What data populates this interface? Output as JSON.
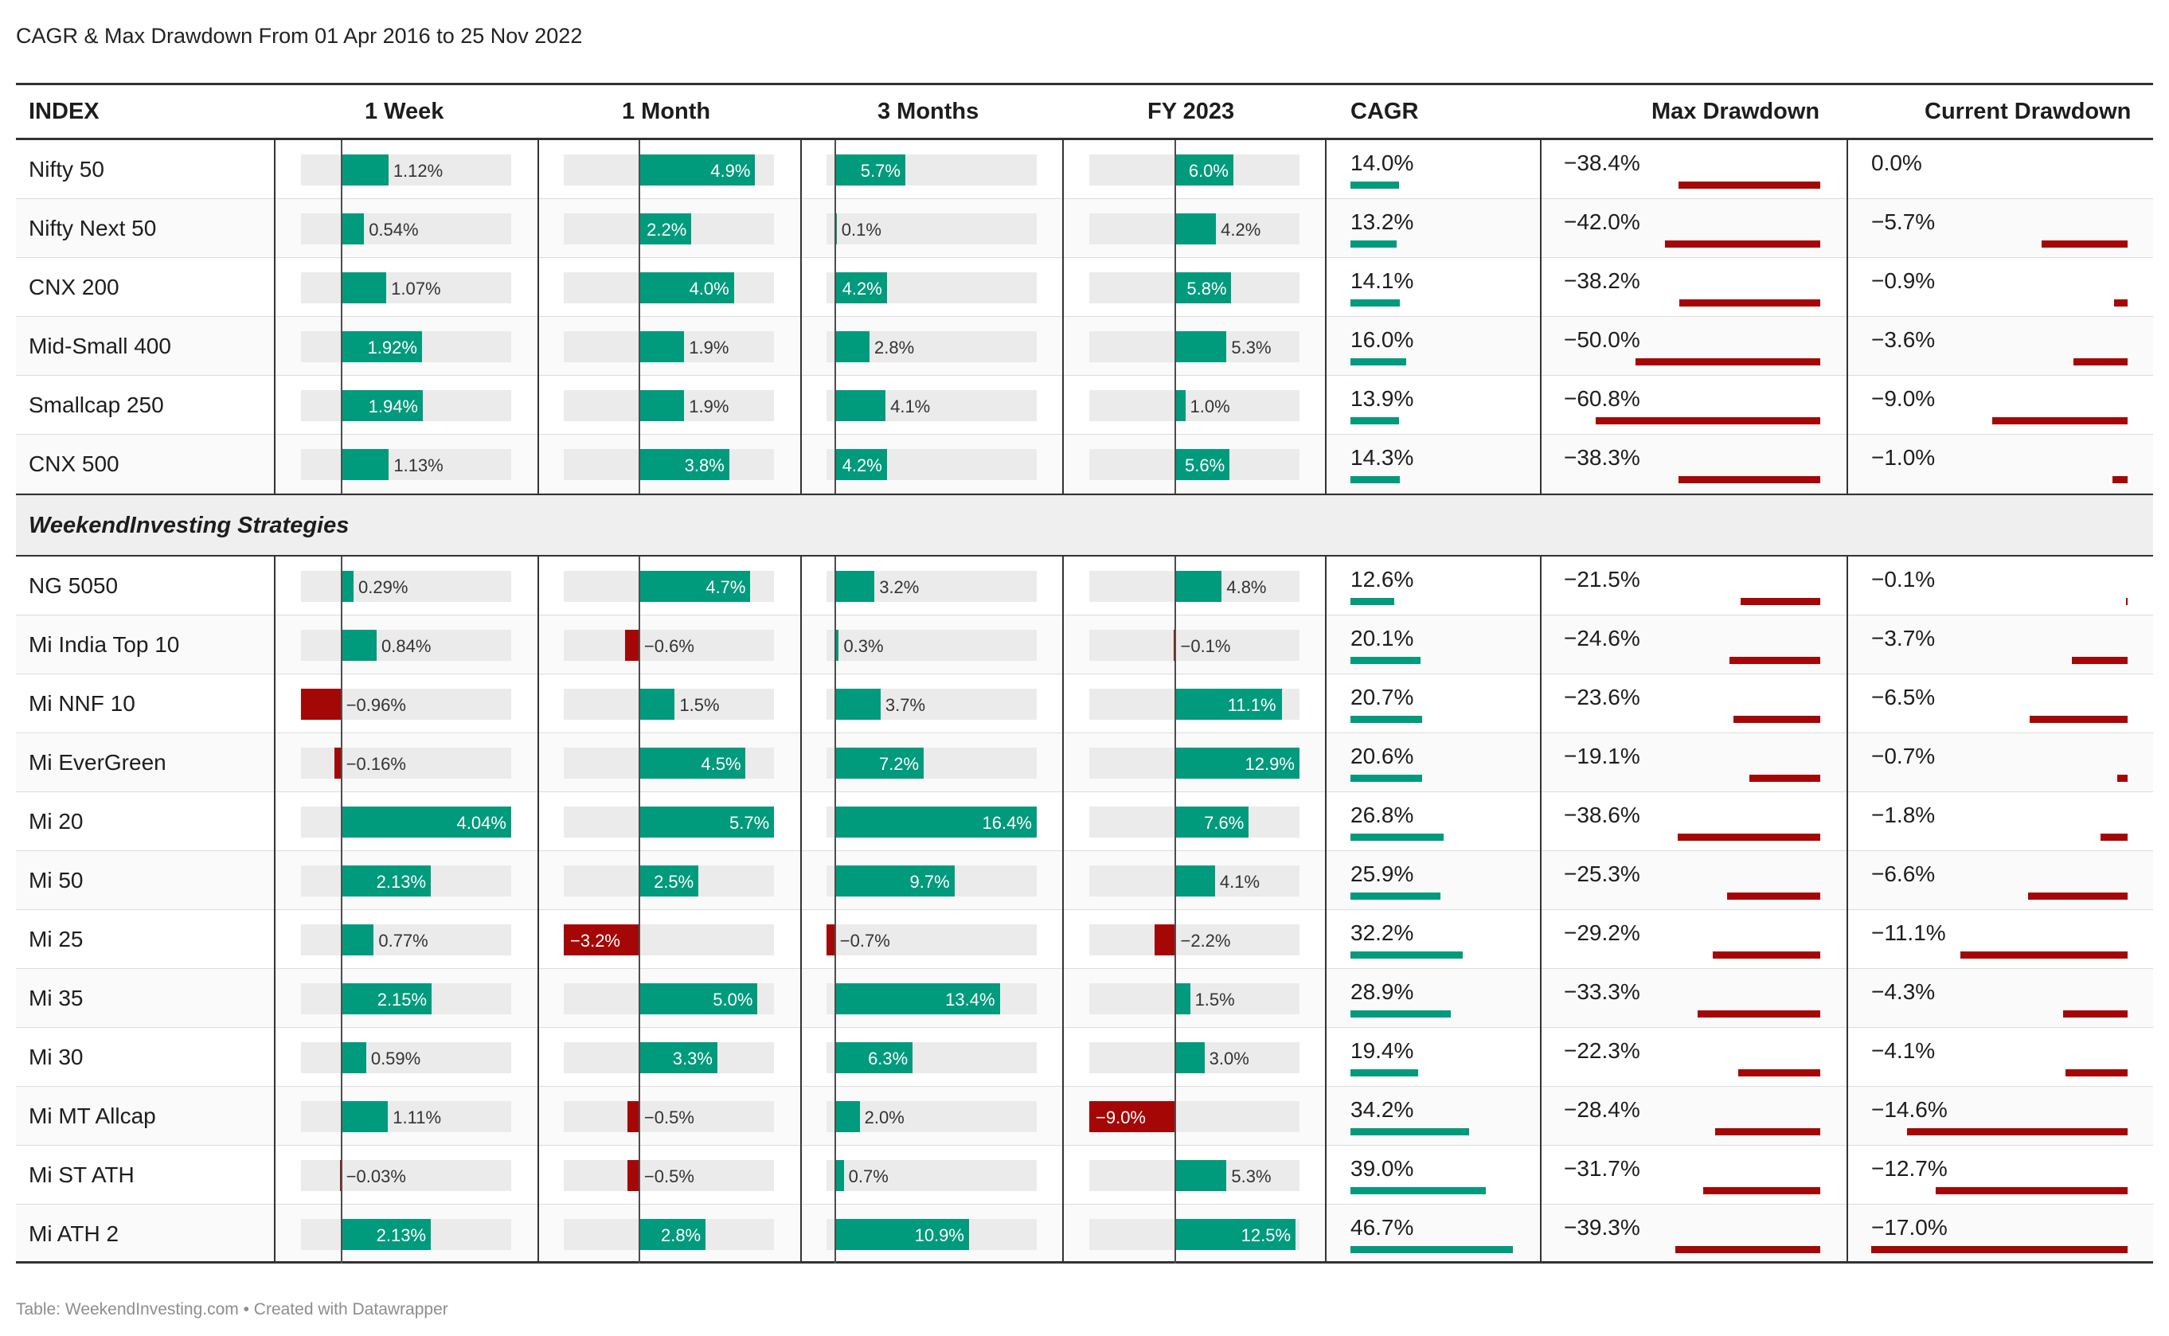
{
  "title": "CAGR & Max Drawdown From 01 Apr 2016 to 25 Nov 2022",
  "footer": "Table: WeekendInvesting.com • Created with Datawrapper",
  "colors": {
    "positive": "#009a7c",
    "negative": "#a50707",
    "track": "#ebebeb",
    "text": "#1d1d1d"
  },
  "chart_data": {
    "type": "table",
    "columns": [
      "INDEX",
      "1 Week",
      "1 Month",
      "3 Months",
      "FY 2023",
      "CAGR",
      "Max Drawdown",
      "Current Drawdown"
    ],
    "units": {
      "1 Week": "%",
      "1 Month": "%",
      "3 Months": "%",
      "FY 2023": "%",
      "CAGR": "%",
      "Max Drawdown": "%",
      "Current Drawdown": "%"
    },
    "groups": [
      {
        "label": "",
        "rows": [
          {
            "name": "Nifty 50",
            "w1": 1.12,
            "m1": 4.9,
            "m3": 5.7,
            "fy": 6.0,
            "cagr": 14.0,
            "maxdd": -38.4,
            "curdd": 0.0
          },
          {
            "name": "Nifty Next 50",
            "w1": 0.54,
            "m1": 2.2,
            "m3": 0.1,
            "fy": 4.2,
            "cagr": 13.2,
            "maxdd": -42.0,
            "curdd": -5.7
          },
          {
            "name": "CNX 200",
            "w1": 1.07,
            "m1": 4.0,
            "m3": 4.2,
            "fy": 5.8,
            "cagr": 14.1,
            "maxdd": -38.2,
            "curdd": -0.9
          },
          {
            "name": "Mid-Small 400",
            "w1": 1.92,
            "m1": 1.9,
            "m3": 2.8,
            "fy": 5.3,
            "cagr": 16.0,
            "maxdd": -50.0,
            "curdd": -3.6
          },
          {
            "name": "Smallcap 250",
            "w1": 1.94,
            "m1": 1.9,
            "m3": 4.1,
            "fy": 1.0,
            "cagr": 13.9,
            "maxdd": -60.8,
            "curdd": -9.0
          },
          {
            "name": "CNX 500",
            "w1": 1.13,
            "m1": 3.8,
            "m3": 4.2,
            "fy": 5.6,
            "cagr": 14.3,
            "maxdd": -38.3,
            "curdd": -1.0
          }
        ]
      },
      {
        "label": "WeekendInvesting Strategies",
        "rows": [
          {
            "name": "NG 5050",
            "w1": 0.29,
            "m1": 4.7,
            "m3": 3.2,
            "fy": 4.8,
            "cagr": 12.6,
            "maxdd": -21.5,
            "curdd": -0.1
          },
          {
            "name": "Mi India Top 10",
            "w1": 0.84,
            "m1": -0.6,
            "m3": 0.3,
            "fy": -0.1,
            "cagr": 20.1,
            "maxdd": -24.6,
            "curdd": -3.7
          },
          {
            "name": "Mi NNF 10",
            "w1": -0.96,
            "m1": 1.5,
            "m3": 3.7,
            "fy": 11.1,
            "cagr": 20.7,
            "maxdd": -23.6,
            "curdd": -6.5
          },
          {
            "name": "Mi EverGreen",
            "w1": -0.16,
            "m1": 4.5,
            "m3": 7.2,
            "fy": 12.9,
            "cagr": 20.6,
            "maxdd": -19.1,
            "curdd": -0.7
          },
          {
            "name": "Mi 20",
            "w1": 4.04,
            "m1": 5.7,
            "m3": 16.4,
            "fy": 7.6,
            "cagr": 26.8,
            "maxdd": -38.6,
            "curdd": -1.8
          },
          {
            "name": "Mi 50",
            "w1": 2.13,
            "m1": 2.5,
            "m3": 9.7,
            "fy": 4.1,
            "cagr": 25.9,
            "maxdd": -25.3,
            "curdd": -6.6
          },
          {
            "name": "Mi 25",
            "w1": 0.77,
            "m1": -3.2,
            "m3": -0.7,
            "fy": -2.2,
            "cagr": 32.2,
            "maxdd": -29.2,
            "curdd": -11.1
          },
          {
            "name": "Mi 35",
            "w1": 2.15,
            "m1": 5.0,
            "m3": 13.4,
            "fy": 1.5,
            "cagr": 28.9,
            "maxdd": -33.3,
            "curdd": -4.3
          },
          {
            "name": "Mi 30",
            "w1": 0.59,
            "m1": 3.3,
            "m3": 6.3,
            "fy": 3.0,
            "cagr": 19.4,
            "maxdd": -22.3,
            "curdd": -4.1
          },
          {
            "name": "Mi MT Allcap",
            "w1": 1.11,
            "m1": -0.5,
            "m3": 2.0,
            "fy": -9.0,
            "cagr": 34.2,
            "maxdd": -28.4,
            "curdd": -14.6
          },
          {
            "name": "Mi ST ATH",
            "w1": -0.03,
            "m1": -0.5,
            "m3": 0.7,
            "fy": 5.3,
            "cagr": 39.0,
            "maxdd": -31.7,
            "curdd": -12.7
          },
          {
            "name": "Mi ATH 2",
            "w1": 2.13,
            "m1": 2.8,
            "m3": 10.9,
            "fy": 12.5,
            "cagr": 46.7,
            "maxdd": -39.3,
            "curdd": -17.0
          }
        ]
      }
    ],
    "bar_ranges": {
      "w1": [
        -0.96,
        4.04
      ],
      "m1": [
        -3.2,
        5.7
      ],
      "m3": [
        -0.7,
        16.4
      ],
      "fy": [
        -9.0,
        12.9
      ],
      "cagr": [
        0,
        46.7
      ],
      "maxdd": [
        -60.8,
        0
      ],
      "curdd": [
        -17.0,
        0
      ]
    },
    "decimals": {
      "w1": 2,
      "m1": 1,
      "m3": 1,
      "fy": 1,
      "cagr": 1,
      "maxdd": 1,
      "curdd": 1
    }
  }
}
